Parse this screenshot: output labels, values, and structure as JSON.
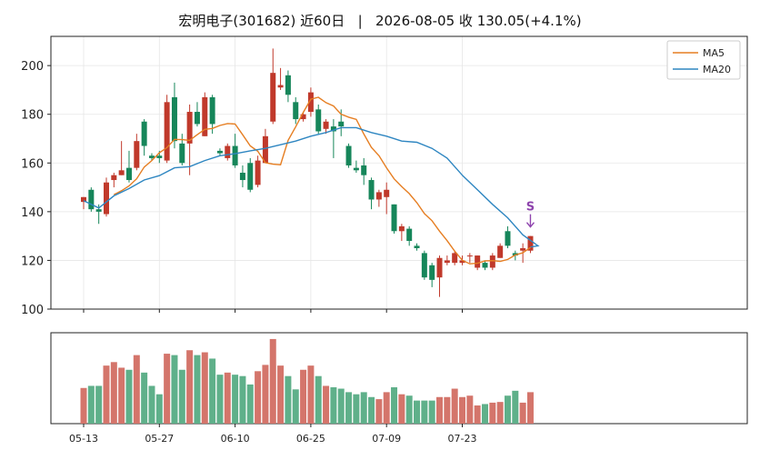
{
  "title": {
    "name": "宏明电子(301682)",
    "range": "近60日",
    "sep": "|",
    "date": "2026-08-05",
    "close_label": "收",
    "close": "130.05",
    "change": "(+4.1%)"
  },
  "colors": {
    "up": "#c0392b",
    "down": "#16865a",
    "vol_up": "#d4756b",
    "vol_down": "#5fb08a",
    "ma5": "#e67e22",
    "ma20": "#2e86c1",
    "signal": "#8e44ad"
  },
  "chart_data": {
    "type": "candlestick",
    "ylim": [
      100,
      212
    ],
    "yticks": [
      100,
      120,
      140,
      160,
      180,
      200
    ],
    "xticks": [
      "05-13",
      "05-27",
      "06-10",
      "06-25",
      "07-09",
      "07-23"
    ],
    "legend": [
      "MA5",
      "MA20"
    ],
    "legend_position": "top-right",
    "grid": true,
    "signal": {
      "label": "S",
      "index": 59
    },
    "ma5": [
      null,
      null,
      null,
      null,
      147.0,
      148.6,
      150.6,
      153.5,
      158.3,
      161.0,
      164.2,
      166.3,
      169.7,
      169.6,
      169.3,
      171.6,
      173.8,
      174.2,
      175.4,
      176.2,
      176.0,
      171.6,
      167.0,
      164.8,
      160.1,
      159.5,
      159.3,
      169.3,
      174.8,
      180.8,
      186.2,
      187.0,
      184.8,
      183.4,
      180.0,
      178.8,
      177.9,
      171.9,
      166.4,
      163.0,
      158.0,
      153.5,
      150.3,
      147.4,
      143.7,
      139.2,
      136.3,
      132.0,
      128.1,
      123.8,
      120.1,
      118.6,
      118.8,
      119.8,
      119.9,
      119.6,
      120.4,
      122.2,
      123.1,
      125.3
    ],
    "ma20": [
      null,
      null,
      null,
      null,
      null,
      null,
      null,
      null,
      null,
      null,
      null,
      null,
      null,
      null,
      null,
      null,
      null,
      null,
      null,
      null,
      null,
      null,
      null,
      null,
      null,
      null,
      null,
      null,
      null,
      null,
      null,
      null,
      null,
      null,
      null,
      null,
      null,
      null,
      null,
      null,
      null,
      null,
      null,
      null,
      null,
      null,
      null,
      null,
      null,
      null,
      null,
      null,
      null,
      null,
      null,
      null,
      null,
      null,
      null,
      null
    ],
    "ma20_line": [
      [
        0,
        144.5
      ],
      [
        2,
        141.5
      ],
      [
        4,
        146.5
      ],
      [
        6,
        149.5
      ],
      [
        8,
        153
      ],
      [
        10,
        154.8
      ],
      [
        12,
        158
      ],
      [
        14,
        158.5
      ],
      [
        16,
        161
      ],
      [
        18,
        163
      ],
      [
        20,
        163.8
      ],
      [
        22,
        165
      ],
      [
        24,
        166
      ],
      [
        26,
        167.5
      ],
      [
        28,
        169
      ],
      [
        30,
        171
      ],
      [
        32,
        172.5
      ],
      [
        34,
        174.5
      ],
      [
        36,
        174.5
      ],
      [
        38,
        172.5
      ],
      [
        40,
        171
      ],
      [
        42,
        169
      ],
      [
        44,
        168.5
      ],
      [
        46,
        166
      ],
      [
        48,
        162
      ],
      [
        50,
        155
      ],
      [
        52,
        149
      ],
      [
        54,
        143
      ],
      [
        56,
        137.5
      ],
      [
        58,
        130.5
      ],
      [
        60,
        126
      ],
      [
        59,
        125.5
      ]
    ],
    "candles": [
      {
        "d": "05-13",
        "o": 144,
        "h": 146,
        "l": 141,
        "c": 146
      },
      {
        "d": "",
        "o": 149,
        "h": 150,
        "l": 140,
        "c": 141
      },
      {
        "d": "",
        "o": 141,
        "h": 143,
        "l": 135,
        "c": 140
      },
      {
        "d": "",
        "o": 139,
        "h": 154,
        "l": 138,
        "c": 152
      },
      {
        "d": "",
        "o": 153,
        "h": 156,
        "l": 150,
        "c": 155
      },
      {
        "d": "",
        "o": 155,
        "h": 169,
        "l": 155,
        "c": 157
      },
      {
        "d": "",
        "o": 158,
        "h": 165,
        "l": 152,
        "c": 153
      },
      {
        "d": "",
        "o": 158,
        "h": 172,
        "l": 157,
        "c": 169
      },
      {
        "d": "",
        "o": 177,
        "h": 178,
        "l": 163,
        "c": 167
      },
      {
        "d": "",
        "o": 163,
        "h": 164,
        "l": 161,
        "c": 162
      },
      {
        "d": "05-27",
        "o": 163,
        "h": 165,
        "l": 160,
        "c": 162
      },
      {
        "d": "",
        "o": 161,
        "h": 188,
        "l": 160,
        "c": 185
      },
      {
        "d": "",
        "o": 187,
        "h": 193,
        "l": 166,
        "c": 169
      },
      {
        "d": "",
        "o": 168,
        "h": 172,
        "l": 159,
        "c": 160
      },
      {
        "d": "",
        "o": 168,
        "h": 184,
        "l": 155,
        "c": 181
      },
      {
        "d": "",
        "o": 181,
        "h": 185,
        "l": 175,
        "c": 176
      },
      {
        "d": "",
        "o": 171,
        "h": 189,
        "l": 171,
        "c": 187
      },
      {
        "d": "",
        "o": 187,
        "h": 188,
        "l": 172,
        "c": 176
      },
      {
        "d": "",
        "o": 165,
        "h": 166,
        "l": 163,
        "c": 164
      },
      {
        "d": "",
        "o": 162,
        "h": 168,
        "l": 161,
        "c": 167
      },
      {
        "d": "06-10",
        "o": 167,
        "h": 172,
        "l": 158,
        "c": 159
      },
      {
        "d": "",
        "o": 156,
        "h": 159,
        "l": 150,
        "c": 153
      },
      {
        "d": "",
        "o": 160,
        "h": 162,
        "l": 148,
        "c": 149
      },
      {
        "d": "",
        "o": 151,
        "h": 163,
        "l": 150,
        "c": 161
      },
      {
        "d": "",
        "o": 160,
        "h": 174,
        "l": 160,
        "c": 171
      },
      {
        "d": "",
        "o": 177,
        "h": 207,
        "l": 176,
        "c": 197
      },
      {
        "d": "",
        "o": 191,
        "h": 199,
        "l": 190,
        "c": 192
      },
      {
        "d": "",
        "o": 196,
        "h": 198,
        "l": 185,
        "c": 188
      },
      {
        "d": "",
        "o": 185,
        "h": 187,
        "l": 176,
        "c": 178
      },
      {
        "d": "",
        "o": 178,
        "h": 181,
        "l": 177,
        "c": 180
      },
      {
        "d": "06-25",
        "o": 181,
        "h": 191,
        "l": 179,
        "c": 189
      },
      {
        "d": "",
        "o": 182,
        "h": 184,
        "l": 172,
        "c": 173
      },
      {
        "d": "",
        "o": 174,
        "h": 178,
        "l": 172,
        "c": 177
      },
      {
        "d": "",
        "o": 175,
        "h": 178,
        "l": 162,
        "c": 173
      },
      {
        "d": "",
        "o": 177,
        "h": 182,
        "l": 171,
        "c": 175
      },
      {
        "d": "",
        "o": 167,
        "h": 168,
        "l": 158,
        "c": 159
      },
      {
        "d": "",
        "o": 158,
        "h": 161,
        "l": 156,
        "c": 157
      },
      {
        "d": "",
        "o": 159,
        "h": 162,
        "l": 151,
        "c": 155
      },
      {
        "d": "",
        "o": 153,
        "h": 154,
        "l": 141,
        "c": 145
      },
      {
        "d": "",
        "o": 145,
        "h": 149,
        "l": 142,
        "c": 148
      },
      {
        "d": "07-09",
        "o": 146,
        "h": 152,
        "l": 139,
        "c": 149
      },
      {
        "d": "",
        "o": 143,
        "h": 143,
        "l": 131,
        "c": 132
      },
      {
        "d": "",
        "o": 132,
        "h": 135,
        "l": 128,
        "c": 134
      },
      {
        "d": "",
        "o": 133,
        "h": 134,
        "l": 126,
        "c": 128
      },
      {
        "d": "",
        "o": 126,
        "h": 127,
        "l": 124,
        "c": 125
      },
      {
        "d": "",
        "o": 123,
        "h": 124,
        "l": 112,
        "c": 113
      },
      {
        "d": "",
        "o": 118,
        "h": 119,
        "l": 109,
        "c": 112
      },
      {
        "d": "",
        "o": 113,
        "h": 122,
        "l": 105,
        "c": 121
      },
      {
        "d": "",
        "o": 119,
        "h": 122,
        "l": 118,
        "c": 120
      },
      {
        "d": "",
        "o": 119,
        "h": 124,
        "l": 118,
        "c": 123
      },
      {
        "d": "07-23",
        "o": 119,
        "h": 122,
        "l": 118,
        "c": 120
      },
      {
        "d": "",
        "o": 122,
        "h": 123,
        "l": 119,
        "c": 122
      },
      {
        "d": "",
        "o": 117,
        "h": 122,
        "l": 116,
        "c": 122
      },
      {
        "d": "",
        "o": 119,
        "h": 120,
        "l": 116,
        "c": 117
      },
      {
        "d": "",
        "o": 117,
        "h": 123,
        "l": 116,
        "c": 122
      },
      {
        "d": "",
        "o": 121,
        "h": 127,
        "l": 121,
        "c": 126
      },
      {
        "d": "",
        "o": 132,
        "h": 134,
        "l": 125,
        "c": 126
      },
      {
        "d": "",
        "o": 123,
        "h": 124,
        "l": 120,
        "c": 122
      },
      {
        "d": "",
        "o": 124,
        "h": 127,
        "l": 119,
        "c": 125
      },
      {
        "d": "",
        "o": 124,
        "h": 130,
        "l": 123,
        "c": 130
      }
    ],
    "volume": [
      0.51,
      0.54,
      0.54,
      0.83,
      0.88,
      0.8,
      0.77,
      0.98,
      0.73,
      0.54,
      0.42,
      1.0,
      0.98,
      0.77,
      1.05,
      0.98,
      1.02,
      0.93,
      0.7,
      0.73,
      0.7,
      0.68,
      0.56,
      0.75,
      0.84,
      1.21,
      0.83,
      0.68,
      0.49,
      0.77,
      0.83,
      0.68,
      0.54,
      0.52,
      0.5,
      0.45,
      0.42,
      0.45,
      0.38,
      0.35,
      0.45,
      0.52,
      0.42,
      0.4,
      0.33,
      0.33,
      0.33,
      0.38,
      0.38,
      0.5,
      0.38,
      0.4,
      0.26,
      0.28,
      0.3,
      0.31,
      0.4,
      0.47,
      0.3,
      0.45
    ]
  }
}
